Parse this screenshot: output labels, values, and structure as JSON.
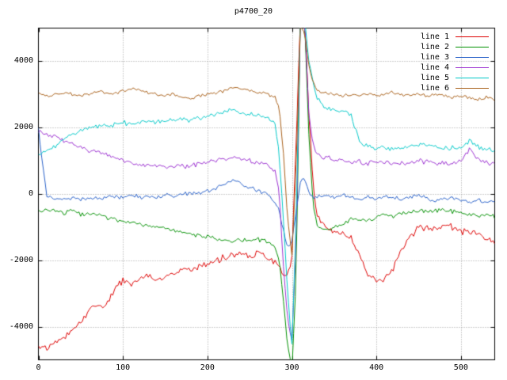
{
  "chart_data": {
    "type": "line",
    "title": "p4700_20",
    "xlabel": "",
    "ylabel": "",
    "xlim": [
      0,
      540
    ],
    "ylim": [
      -5000,
      5000
    ],
    "xticks": [
      0,
      100,
      200,
      300,
      400,
      500
    ],
    "yticks": [
      -4000,
      -2000,
      0,
      2000,
      4000
    ],
    "grid": "dotted",
    "legend_position": "top-right",
    "x": [
      0,
      10,
      20,
      30,
      40,
      50,
      60,
      70,
      80,
      90,
      100,
      110,
      120,
      130,
      140,
      150,
      160,
      170,
      180,
      190,
      200,
      210,
      220,
      230,
      240,
      250,
      260,
      270,
      280,
      285,
      290,
      295,
      300,
      305,
      310,
      315,
      320,
      325,
      330,
      340,
      350,
      360,
      370,
      380,
      390,
      400,
      410,
      420,
      430,
      440,
      450,
      460,
      470,
      480,
      490,
      500,
      510,
      520,
      530,
      540
    ],
    "series": [
      {
        "name": "line 1",
        "color": "#dd0000",
        "noise": 130,
        "values": [
          -4550,
          -4650,
          -4500,
          -4350,
          -4100,
          -3850,
          -3500,
          -3300,
          -3400,
          -2850,
          -2600,
          -2700,
          -2550,
          -2500,
          -2600,
          -2450,
          -2400,
          -2300,
          -2250,
          -2200,
          -2100,
          -2000,
          -1900,
          -1850,
          -1800,
          -1900,
          -1750,
          -1850,
          -2050,
          -2200,
          -2400,
          -2500,
          -1800,
          1500,
          5300,
          5300,
          2500,
          300,
          -700,
          -1050,
          -1100,
          -1200,
          -1350,
          -1800,
          -2450,
          -2650,
          -2550,
          -2250,
          -1650,
          -1250,
          -1050,
          -1000,
          -1100,
          -900,
          -1000,
          -1100,
          -1150,
          -1250,
          -1350,
          -1500
        ]
      },
      {
        "name": "line 2",
        "color": "#009000",
        "noise": 80,
        "values": [
          -500,
          -480,
          -520,
          -560,
          -500,
          -620,
          -640,
          -600,
          -700,
          -760,
          -820,
          -860,
          -900,
          -950,
          -1000,
          -1020,
          -1100,
          -1150,
          -1200,
          -1260,
          -1300,
          -1350,
          -1420,
          -1400,
          -1360,
          -1420,
          -1380,
          -1420,
          -1600,
          -2000,
          -3200,
          -4600,
          -5300,
          -2500,
          5300,
          5300,
          1800,
          -300,
          -950,
          -1100,
          -1000,
          -900,
          -750,
          -780,
          -820,
          -700,
          -620,
          -660,
          -600,
          -560,
          -500,
          -560,
          -500,
          -460,
          -520,
          -560,
          -620,
          -660,
          -620,
          -700
        ]
      },
      {
        "name": "line 3",
        "color": "#2860c8",
        "noise": 80,
        "values": [
          1950,
          -50,
          -120,
          -160,
          -100,
          -200,
          -120,
          -160,
          -100,
          -60,
          -120,
          -20,
          -100,
          -60,
          -110,
          -20,
          -60,
          -10,
          40,
          0,
          90,
          160,
          280,
          400,
          330,
          200,
          80,
          -20,
          -250,
          -500,
          -1100,
          -1700,
          -1400,
          -500,
          350,
          450,
          80,
          -120,
          -80,
          -60,
          -110,
          -10,
          -110,
          -160,
          -100,
          -160,
          -60,
          -110,
          -160,
          -100,
          -60,
          -110,
          -210,
          -160,
          -110,
          -160,
          -210,
          -160,
          -260,
          -210
        ]
      },
      {
        "name": "line 4",
        "color": "#9b30d0",
        "noise": 90,
        "values": [
          1850,
          1780,
          1720,
          1620,
          1500,
          1420,
          1320,
          1260,
          1200,
          1100,
          1020,
          960,
          900,
          900,
          860,
          820,
          860,
          820,
          860,
          900,
          950,
          1000,
          1050,
          1120,
          1060,
          1010,
          960,
          900,
          700,
          0,
          -2200,
          -3800,
          -4400,
          -1500,
          5300,
          5300,
          2400,
          1500,
          1200,
          1100,
          1050,
          1000,
          1000,
          960,
          920,
          960,
          920,
          960,
          920,
          960,
          1000,
          960,
          920,
          960,
          920,
          1000,
          1380,
          1050,
          960,
          920
        ]
      },
      {
        "name": "line 5",
        "color": "#00c8c8",
        "noise": 90,
        "values": [
          1250,
          1320,
          1450,
          1650,
          1800,
          1900,
          2000,
          2020,
          2080,
          2100,
          2150,
          2100,
          2150,
          2200,
          2160,
          2200,
          2220,
          2260,
          2220,
          2300,
          2350,
          2400,
          2460,
          2520,
          2460,
          2400,
          2360,
          2300,
          2100,
          1200,
          -800,
          -3000,
          -4600,
          -800,
          5300,
          5300,
          4000,
          3300,
          2850,
          2600,
          2520,
          2460,
          2400,
          1550,
          1420,
          1360,
          1420,
          1360,
          1400,
          1460,
          1500,
          1460,
          1400,
          1360,
          1420,
          1360,
          1600,
          1420,
          1360,
          1300
        ]
      },
      {
        "name": "line 6",
        "color": "#a8601a",
        "noise": 60,
        "values": [
          3000,
          2960,
          3010,
          3060,
          3000,
          2960,
          3010,
          3110,
          3060,
          3000,
          3110,
          3160,
          3110,
          3050,
          3000,
          2960,
          3010,
          2910,
          2860,
          2960,
          3010,
          3060,
          3110,
          3210,
          3160,
          3110,
          3060,
          3010,
          2900,
          2600,
          1200,
          -800,
          -1800,
          800,
          5100,
          4850,
          3900,
          3350,
          3110,
          3060,
          3010,
          2960,
          3010,
          2960,
          3010,
          2960,
          3010,
          3060,
          3010,
          2960,
          3010,
          2960,
          3010,
          2960,
          2910,
          2960,
          2910,
          2860,
          2910,
          2860
        ]
      }
    ]
  }
}
